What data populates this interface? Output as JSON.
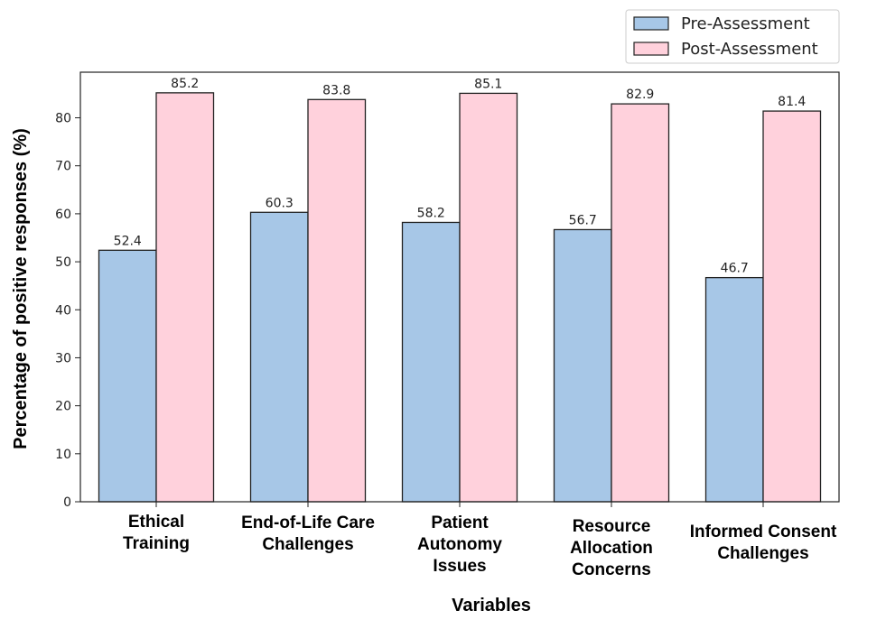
{
  "chart_data": {
    "type": "bar",
    "categories": [
      [
        "Ethical",
        "Training"
      ],
      [
        "End-of-Life Care",
        "Challenges"
      ],
      [
        "Patient",
        "Autonomy",
        "Issues"
      ],
      [
        "Resource",
        "Allocation",
        "Concerns"
      ],
      [
        "Informed Consent",
        "Challenges"
      ]
    ],
    "series": [
      {
        "name": "Pre-Assessment",
        "color": "#a7c7e7",
        "values": [
          52.4,
          60.3,
          58.2,
          56.7,
          46.7
        ]
      },
      {
        "name": "Post-Assessment",
        "color": "#ffd1dc",
        "values": [
          85.2,
          83.8,
          85.1,
          82.9,
          81.4
        ]
      }
    ],
    "xlabel": "Variables",
    "ylabel": "Percentage of positive responses (%)",
    "ylim": [
      0,
      89.5
    ],
    "yticks": [
      0,
      10,
      20,
      30,
      40,
      50,
      60,
      70,
      80
    ],
    "grid": false,
    "legend_position": "top-right"
  }
}
